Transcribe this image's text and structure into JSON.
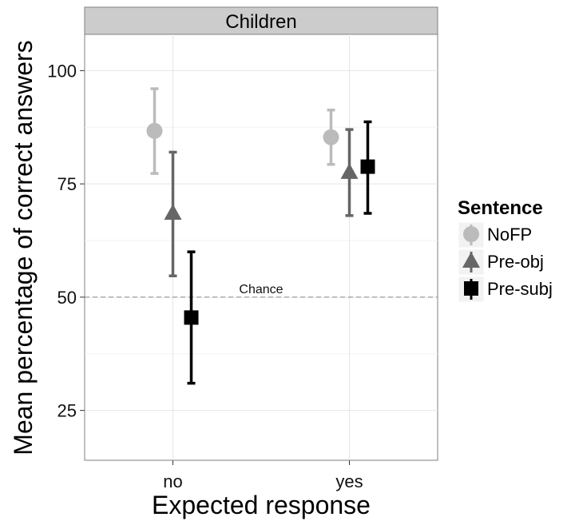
{
  "chart_data": {
    "type": "scatter",
    "title": "",
    "facet_label": "Children",
    "xlabel": "Expected response",
    "ylabel": "Mean percentage of correct answers",
    "categories": [
      "no",
      "yes"
    ],
    "ylim": [
      14,
      108
    ],
    "yticks": [
      25,
      50,
      75,
      100
    ],
    "grid": true,
    "legend_title": "Sentence",
    "legend_position": "right",
    "reference_line": {
      "y": 50,
      "label": "Chance",
      "style": "dashed",
      "color": "#999999"
    },
    "series": [
      {
        "name": "NoFP",
        "shape": "circle",
        "color": "#BBBBBB",
        "values": [
          86.7,
          85.3
        ],
        "ci_low": [
          77.3,
          79.3
        ],
        "ci_high": [
          96.0,
          91.3
        ]
      },
      {
        "name": "Pre-obj",
        "shape": "triangle",
        "color": "#666666",
        "values": [
          68.5,
          77.5
        ],
        "ci_low": [
          54.7,
          68.0
        ],
        "ci_high": [
          82.0,
          87.0
        ]
      },
      {
        "name": "Pre-subj",
        "shape": "square",
        "color": "#000000",
        "values": [
          45.5,
          78.8
        ],
        "ci_low": [
          31.0,
          68.5
        ],
        "ci_high": [
          60.0,
          88.7
        ]
      }
    ]
  }
}
